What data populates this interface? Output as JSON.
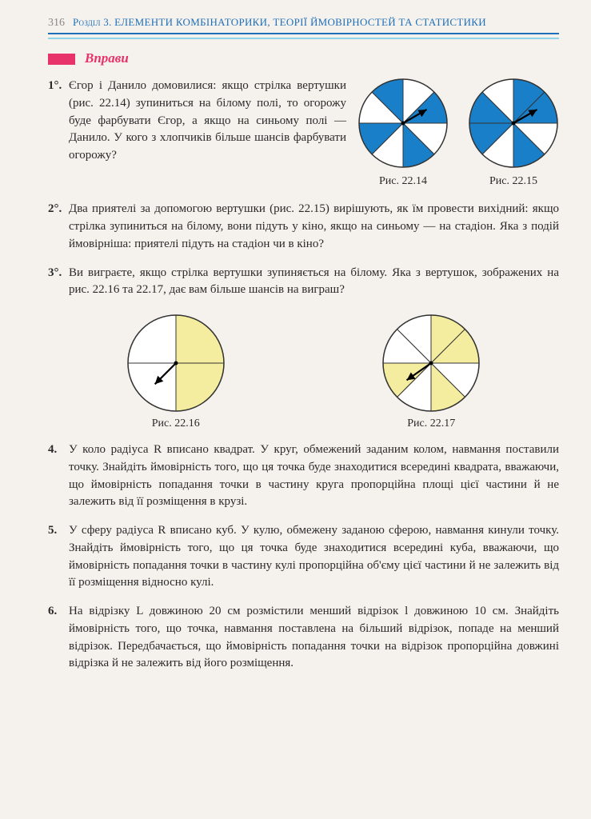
{
  "header": {
    "page_number": "316",
    "chapter": "Розділ 3. ЕЛЕМЕНТИ КОМБІНАТОРИКИ, ТЕОРІЇ ЙМОВІРНОСТЕЙ ТА СТАТИСТИКИ"
  },
  "section": {
    "title": "Вправи"
  },
  "colors": {
    "header_blue": "#1e6fb8",
    "cyan": "#8fd4e8",
    "magenta": "#e7336a",
    "spinner_blue": "#1a7fc9",
    "spinner_yellow": "#f4ec9e",
    "circle_stroke": "#333333",
    "page_bg": "#f5f2ed"
  },
  "exercises": {
    "e1": {
      "num": "1°.",
      "text": "Єгор і Данило домовилися: якщо стрілка вертушки (рис. 22.14) зупиниться на білому полі, то огорожу буде фарбувати Єгор, а якщо на синьому полі — Данило. У кого з хлопчиків більше шансів фарбувати огорожу?"
    },
    "e2": {
      "num": "2°.",
      "text": "Два приятелі за допомогою вертушки (рис. 22.15) вирішують, як їм провести вихідний: якщо стрілка зупиниться на білому, вони підуть у кіно, якщо на синьому — на стадіон. Яка з подій ймовірніша: приятелі підуть на стадіон чи в кіно?"
    },
    "e3": {
      "num": "3°.",
      "text": "Ви виграєте, якщо стрілка вертушки зупиняється на білому. Яка з вертушок, зображених на рис. 22.16 та 22.17, дає вам більше шансів на виграш?"
    },
    "e4": {
      "num": "4.",
      "text": "У коло радіуса R вписано квадрат. У круг, обмежений заданим колом, навмання поставили точку. Знайдіть ймовірність того, що ця точка буде знаходитися всередині квадрата, вважаючи, що ймовірність попадання точки в частину круга пропорційна площі цієї частини й не залежить від її розміщення в крузі."
    },
    "e5": {
      "num": "5.",
      "text": "У сферу радіуса R вписано куб. У кулю, обмежену заданою сферою, навмання кинули точку. Знайдіть ймовірність того, що ця точка буде знаходитися всередині куба, вважаючи, що ймовірність попадання точки в частину кулі пропорційна об'єму цієї частини й не залежить від її розміщення відносно кулі."
    },
    "e6": {
      "num": "6.",
      "text": "На відрізку L довжиною 20 см розмістили менший відрізок l довжиною 10 см. Знайдіть ймовірність того, що точка, навмання поставлена на більший відрізок, попаде на менший відрізок. Передбачається, що ймовірність попадання точки на відрізок пропорційна довжині відрізка й не залежить від його розміщення."
    }
  },
  "figures": {
    "f1": {
      "caption": "Рис. 22.14",
      "type": "pie-spinner",
      "sectors": 8,
      "colored_indices": [
        1,
        3,
        5,
        7
      ],
      "fill": "#1a7fc9",
      "radius": 55,
      "arrow_angle_deg": 60
    },
    "f2": {
      "caption": "Рис. 22.15",
      "type": "pie-spinner",
      "sectors": 8,
      "colored_indices": [
        0,
        1,
        3,
        5,
        6
      ],
      "fill": "#1a7fc9",
      "radius": 55,
      "arrow_angle_deg": 60
    },
    "f3": {
      "caption": "Рис. 22.16",
      "type": "pie-spinner",
      "sectors": 4,
      "colored_indices": [
        0,
        1
      ],
      "fill": "#f4ec9e",
      "radius": 60,
      "arrow_angle_deg": 225
    },
    "f4": {
      "caption": "Рис. 22.17",
      "type": "pie-spinner",
      "sectors": 8,
      "colored_indices": [
        0,
        1,
        3,
        5
      ],
      "fill": "#f4ec9e",
      "radius": 60,
      "arrow_angle_deg": 235
    }
  }
}
